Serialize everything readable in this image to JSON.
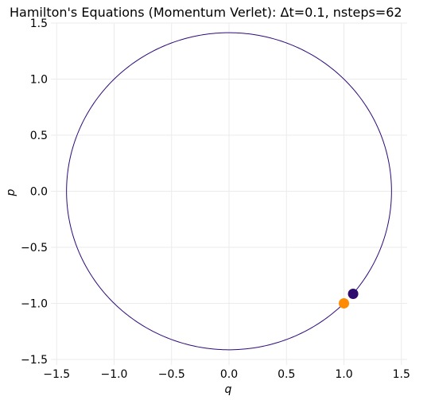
{
  "chart_data": {
    "type": "line",
    "title": "Hamilton's Equations (Momentum Verlet): Δt=0.1, nsteps=62",
    "xlabel": "q",
    "ylabel": "p",
    "xlim": [
      -1.55,
      1.55
    ],
    "ylim": [
      -1.55,
      1.5
    ],
    "xticks": [
      -1.5,
      -1.0,
      -0.5,
      0.0,
      0.5,
      1.0,
      1.5
    ],
    "yticks": [
      -1.5,
      -1.0,
      -0.5,
      0.0,
      0.5,
      1.0,
      1.5
    ],
    "xtick_labels": [
      "−1.5",
      "−1.0",
      "−0.5",
      "0.0",
      "0.5",
      "1.0",
      "1.5"
    ],
    "ytick_labels": [
      "−1.5",
      "−1.0",
      "−0.5",
      "0.0",
      "0.5",
      "1.0",
      "1.5"
    ],
    "grid": true,
    "series": [
      {
        "kind": "trajectory",
        "color": "#2e0a7a",
        "center": [
          0.0,
          0.0
        ],
        "radius": 1.414,
        "start_point": [
          1.0,
          -1.0
        ],
        "end_point": [
          1.08,
          -0.915
        ]
      }
    ],
    "markers": [
      {
        "role": "start",
        "q": 1.0,
        "p": -1.0,
        "color": "#ff8c00"
      },
      {
        "role": "end",
        "q": 1.08,
        "p": -0.915,
        "color": "#2e0a6e"
      }
    ]
  }
}
